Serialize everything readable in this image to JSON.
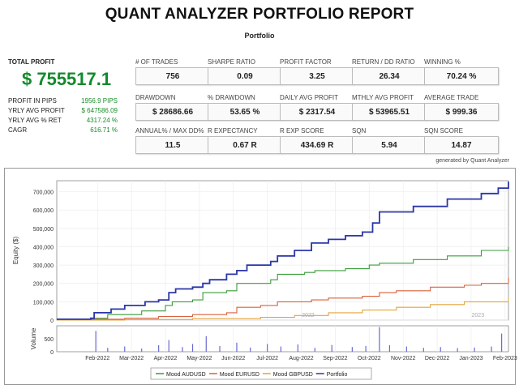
{
  "header": {
    "title": "QUANT ANALYZER PORTFOLIO REPORT",
    "subtitle": "Portfolio"
  },
  "summary": {
    "total_profit_label": "TOTAL PROFIT",
    "total_profit_value": "$ 755517.1",
    "rows": [
      {
        "label": "PROFIT IN PIPS",
        "value": "1956.9 PIPS"
      },
      {
        "label": "YRLY AVG PROFIT",
        "value": "$ 647586.09"
      },
      {
        "label": "YRLY AVG % RET",
        "value": "4317.24 %"
      },
      {
        "label": "CAGR",
        "value": "616.71 %"
      }
    ]
  },
  "metrics": [
    {
      "label": "# OF TRADES",
      "value": "756"
    },
    {
      "label": "SHARPE RATIO",
      "value": "0.09"
    },
    {
      "label": "PROFIT FACTOR",
      "value": "3.25"
    },
    {
      "label": "RETURN / DD RATIO",
      "value": "26.34"
    },
    {
      "label": "WINNING %",
      "value": "70.24 %"
    },
    {
      "label": "DRAWDOWN",
      "value": "$ 28686.66"
    },
    {
      "label": "% DRAWDOWN",
      "value": "53.65 %"
    },
    {
      "label": "DAILY AVG PROFIT",
      "value": "$ 2317.54"
    },
    {
      "label": "MTHLY AVG PROFIT",
      "value": "$ 53965.51"
    },
    {
      "label": "AVERAGE TRADE",
      "value": "$ 999.36"
    },
    {
      "label": "ANNUAL% / MAX DD%",
      "value": "11.5"
    },
    {
      "label": "R EXPECTANCY",
      "value": "0.67 R"
    },
    {
      "label": "R EXP SCORE",
      "value": "434.69 R"
    },
    {
      "label": "SQN",
      "value": "5.94"
    },
    {
      "label": "SQN SCORE",
      "value": "14.87"
    }
  ],
  "generated_by": "generated by Quant Analyzer",
  "chart_data": {
    "type": "line",
    "ylabel": "Equity ($)",
    "ylim": [
      0,
      760000
    ],
    "yticks": [
      0,
      100000,
      200000,
      300000,
      400000,
      500000,
      600000,
      700000
    ],
    "ytick_labels": [
      "0",
      "100,000",
      "200,000",
      "300,000",
      "400,000",
      "500,000",
      "600,000",
      "700,000"
    ],
    "xlim": [
      0,
      13.3
    ],
    "x_tick_positions": [
      1.2,
      2.2,
      3.2,
      4.2,
      5.2,
      6.2,
      7.2,
      8.2,
      9.2,
      10.2,
      11.2,
      12.2,
      13.2
    ],
    "x_tick_labels": [
      "Feb-2022",
      "Mar-2022",
      "Apr-2022",
      "May-2022",
      "Jun-2022",
      "Jul-2022",
      "Aug-2022",
      "Sep-2022",
      "Oct-2022",
      "Nov-2022",
      "Dec-2022",
      "Jan-2023",
      "Feb-2023"
    ],
    "watermarks": [
      {
        "x": 7.4,
        "text": "2022"
      },
      {
        "x": 12.4,
        "text": "2023"
      }
    ],
    "grid": true,
    "legend_position": "bottom",
    "series": [
      {
        "name": "Mood AUDUSD",
        "color": "#3a9c3a",
        "x": [
          0,
          1.0,
          1.5,
          2.5,
          3.2,
          3.4,
          4.0,
          4.3,
          5.0,
          5.3,
          6.3,
          6.5,
          7.3,
          7.6,
          8.5,
          9.2,
          9.5,
          10.5,
          11.5,
          12.5,
          13.3
        ],
        "y": [
          5000,
          10000,
          30000,
          50000,
          80000,
          100000,
          110000,
          150000,
          160000,
          200000,
          220000,
          250000,
          260000,
          270000,
          280000,
          300000,
          310000,
          330000,
          350000,
          380000,
          400000
        ]
      },
      {
        "name": "Mood EURUSD",
        "color": "#d9603b",
        "x": [
          0,
          1.0,
          2.0,
          3.0,
          4.0,
          5.0,
          5.3,
          6.0,
          6.5,
          7.5,
          8.0,
          9.0,
          9.5,
          10.0,
          11.0,
          12.0,
          12.5,
          13.3
        ],
        "y": [
          0,
          5000,
          10000,
          20000,
          30000,
          40000,
          70000,
          80000,
          100000,
          110000,
          120000,
          130000,
          150000,
          160000,
          180000,
          190000,
          200000,
          230000
        ]
      },
      {
        "name": "Mood GBPUSD",
        "color": "#e3a43a",
        "x": [
          0,
          2.0,
          4.0,
          6.0,
          7.0,
          8.0,
          9.0,
          10.0,
          11.0,
          12.0,
          13.3
        ],
        "y": [
          0,
          3000,
          8000,
          15000,
          25000,
          40000,
          55000,
          70000,
          85000,
          100000,
          125000
        ]
      },
      {
        "name": "Portfolio",
        "color": "#2b36a8",
        "x": [
          0,
          1.0,
          1.1,
          1.6,
          2.0,
          2.6,
          3.0,
          3.3,
          3.5,
          4.0,
          4.3,
          4.5,
          5.0,
          5.3,
          5.6,
          6.3,
          6.5,
          7.0,
          7.5,
          8.0,
          8.5,
          9.0,
          9.3,
          9.5,
          10.5,
          11.5,
          12.5,
          13.0,
          13.3
        ],
        "y": [
          5000,
          10000,
          40000,
          60000,
          80000,
          100000,
          110000,
          150000,
          170000,
          180000,
          200000,
          220000,
          250000,
          270000,
          300000,
          320000,
          350000,
          380000,
          420000,
          440000,
          460000,
          480000,
          530000,
          590000,
          620000,
          660000,
          690000,
          720000,
          755000
        ]
      }
    ],
    "volume": {
      "ylabel": "Volume",
      "yticks": [
        0,
        500
      ],
      "ylim": [
        0,
        1000
      ],
      "color": "#6a6ad0",
      "bars": [
        {
          "x": 1.15,
          "v": 800
        },
        {
          "x": 1.5,
          "v": 150
        },
        {
          "x": 2.0,
          "v": 200
        },
        {
          "x": 2.5,
          "v": 120
        },
        {
          "x": 3.0,
          "v": 250
        },
        {
          "x": 3.3,
          "v": 450
        },
        {
          "x": 3.7,
          "v": 180
        },
        {
          "x": 4.0,
          "v": 300
        },
        {
          "x": 4.4,
          "v": 600
        },
        {
          "x": 4.8,
          "v": 220
        },
        {
          "x": 5.3,
          "v": 350
        },
        {
          "x": 5.7,
          "v": 160
        },
        {
          "x": 6.2,
          "v": 300
        },
        {
          "x": 6.6,
          "v": 200
        },
        {
          "x": 7.1,
          "v": 280
        },
        {
          "x": 7.6,
          "v": 150
        },
        {
          "x": 8.1,
          "v": 260
        },
        {
          "x": 8.7,
          "v": 180
        },
        {
          "x": 9.1,
          "v": 220
        },
        {
          "x": 9.5,
          "v": 950
        },
        {
          "x": 9.8,
          "v": 250
        },
        {
          "x": 10.3,
          "v": 200
        },
        {
          "x": 10.8,
          "v": 150
        },
        {
          "x": 11.3,
          "v": 180
        },
        {
          "x": 11.8,
          "v": 140
        },
        {
          "x": 12.3,
          "v": 160
        },
        {
          "x": 12.8,
          "v": 200
        },
        {
          "x": 13.1,
          "v": 700
        }
      ]
    }
  }
}
